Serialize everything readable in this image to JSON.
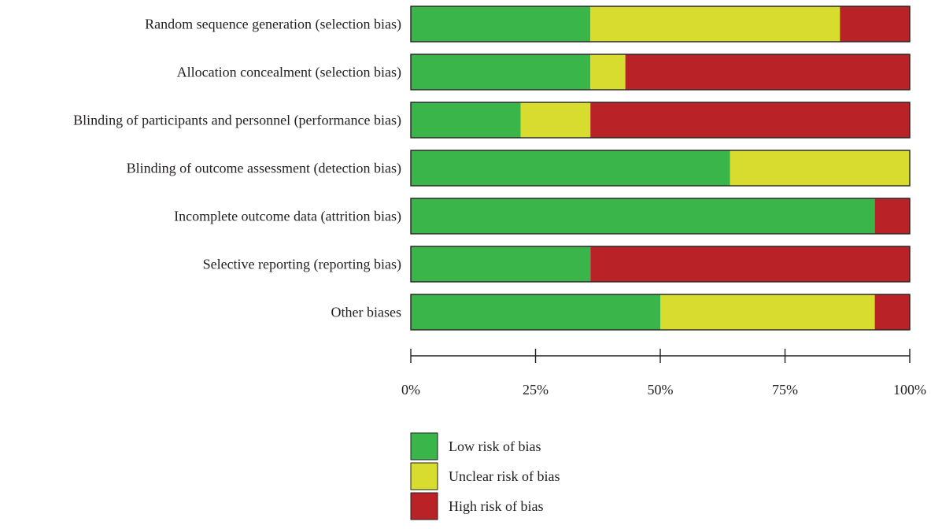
{
  "colors": {
    "low": "#3ab54a",
    "unclear": "#d7dc2f",
    "high": "#b92327",
    "outline": "#231f20"
  },
  "chart_data": {
    "type": "bar",
    "orientation": "horizontal",
    "stacked": true,
    "percent_stacked": true,
    "title": "",
    "xlabel": "",
    "ylabel": "",
    "xlim": [
      0,
      100
    ],
    "grid": false,
    "legend_position": "bottom",
    "categories": [
      "Random sequence generation (selection bias)",
      "Allocation concealment (selection bias)",
      "Blinding of participants and personnel (performance bias)",
      "Blinding of outcome assessment (detection bias)",
      "Incomplete outcome data (attrition bias)",
      "Selective reporting (reporting bias)",
      "Other biases"
    ],
    "series": [
      {
        "name": "Low risk of bias",
        "key": "low",
        "values": [
          36,
          36,
          22,
          64,
          93,
          36,
          50
        ]
      },
      {
        "name": "Unclear risk of bias",
        "key": "unclear",
        "values": [
          50,
          7,
          14,
          36,
          0,
          0,
          43
        ]
      },
      {
        "name": "High risk of bias",
        "key": "high",
        "values": [
          14,
          57,
          64,
          0,
          7,
          64,
          7
        ]
      }
    ],
    "x_ticks": [
      0,
      25,
      50,
      75,
      100
    ],
    "x_tick_labels": [
      "0%",
      "25%",
      "50%",
      "75%",
      "100%"
    ]
  }
}
